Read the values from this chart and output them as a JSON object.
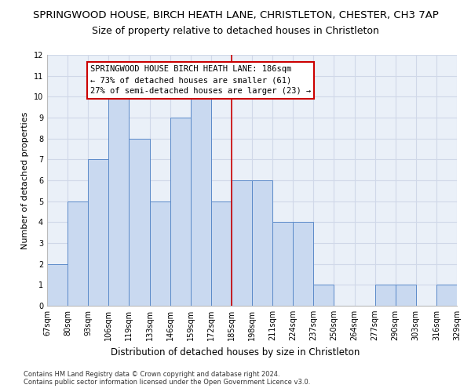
{
  "title": "SPRINGWOOD HOUSE, BIRCH HEATH LANE, CHRISTLETON, CHESTER, CH3 7AP",
  "subtitle": "Size of property relative to detached houses in Christleton",
  "xlabel": "Distribution of detached houses by size in Christleton",
  "ylabel": "Number of detached properties",
  "categories": [
    "67sqm",
    "80sqm",
    "93sqm",
    "106sqm",
    "119sqm",
    "133sqm",
    "146sqm",
    "159sqm",
    "172sqm",
    "185sqm",
    "198sqm",
    "211sqm",
    "224sqm",
    "237sqm",
    "250sqm",
    "264sqm",
    "277sqm",
    "290sqm",
    "303sqm",
    "316sqm",
    "329sqm"
  ],
  "bar_values": [
    2,
    5,
    7,
    10,
    8,
    5,
    9,
    10,
    5,
    6,
    6,
    4,
    4,
    1,
    0,
    0,
    1,
    1,
    0,
    1
  ],
  "bar_color": "#c9d9f0",
  "bar_edge_color": "#5b8ac9",
  "red_line_index": 9,
  "annotation_title": "SPRINGWOOD HOUSE BIRCH HEATH LANE: 186sqm",
  "annotation_line1": "← 73% of detached houses are smaller (61)",
  "annotation_line2": "27% of semi-detached houses are larger (23) →",
  "annotation_box_color": "#ffffff",
  "annotation_box_edge_color": "#cc0000",
  "ylim": [
    0,
    12
  ],
  "yticks": [
    0,
    1,
    2,
    3,
    4,
    5,
    6,
    7,
    8,
    9,
    10,
    11,
    12
  ],
  "grid_color": "#d0d8e8",
  "background_color": "#eaf0f8",
  "footnote1": "Contains HM Land Registry data © Crown copyright and database right 2024.",
  "footnote2": "Contains public sector information licensed under the Open Government Licence v3.0.",
  "title_fontsize": 9.5,
  "subtitle_fontsize": 9,
  "xlabel_fontsize": 8.5,
  "ylabel_fontsize": 8,
  "tick_fontsize": 7,
  "annotation_fontsize": 7.5,
  "footnote_fontsize": 6
}
